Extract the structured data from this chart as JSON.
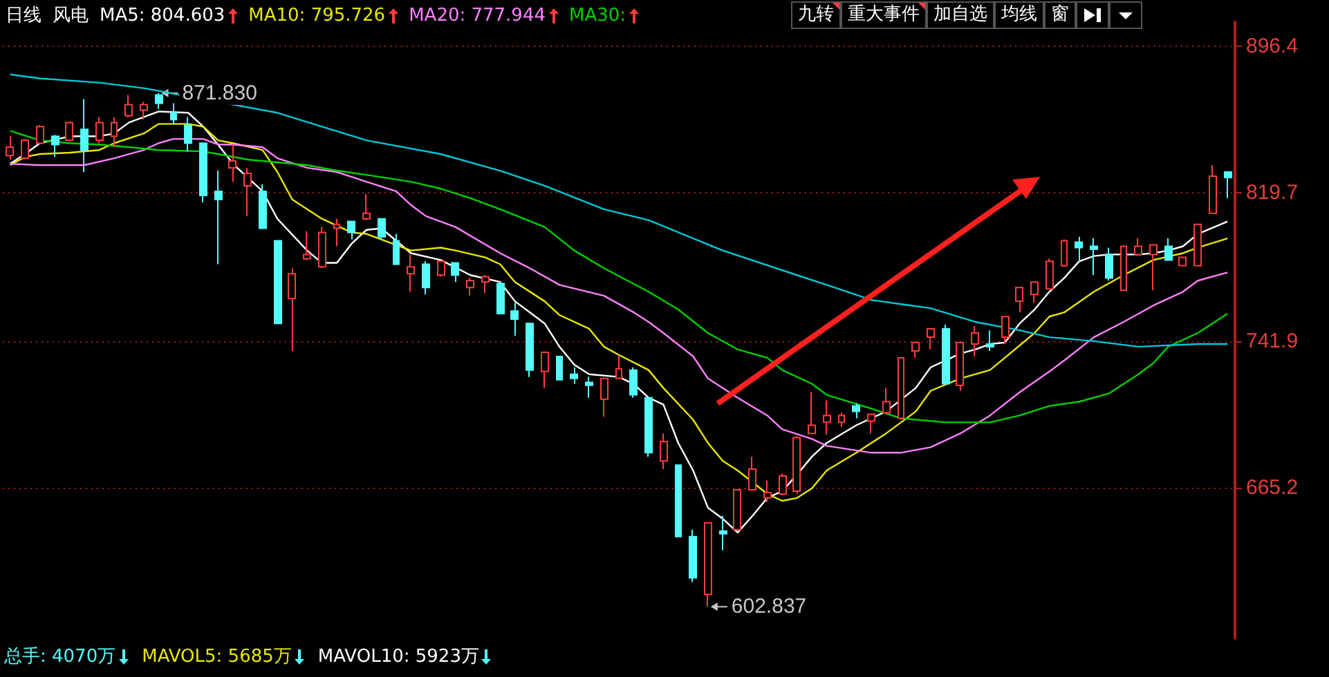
{
  "chart_data": {
    "type": "candlestick",
    "title": "风电",
    "subtitle": "日线",
    "categories": [
      null,
      null,
      null,
      null,
      null,
      null,
      null,
      null,
      null,
      null,
      null,
      null,
      null,
      null,
      null,
      null,
      null,
      null,
      null,
      null,
      null,
      null,
      null,
      null,
      null,
      null,
      null,
      null,
      null,
      null,
      null,
      null,
      null,
      null,
      null,
      null,
      null,
      null,
      null,
      null,
      null,
      null,
      null,
      null,
      null,
      null,
      null,
      null,
      null,
      null,
      null,
      null,
      null,
      null,
      null,
      null,
      null,
      null,
      null,
      null,
      null,
      null,
      null,
      null,
      null,
      null,
      null,
      null,
      null,
      null,
      null,
      null,
      null,
      null,
      null,
      null,
      null,
      null,
      null,
      null,
      null,
      null,
      null
    ],
    "series": [
      {
        "ohlc": [
          [
            839.1,
            849.2,
            837.0,
            843.5
          ],
          [
            837.7,
            847.8,
            837.0,
            847.1
          ],
          [
            845.6,
            855.0,
            844.9,
            854.3
          ],
          [
            849.2,
            849.9,
            838.4,
            844.9
          ],
          [
            847.1,
            857.1,
            846.3,
            856.4
          ],
          [
            852.8,
            868.7,
            830.5,
            842.0
          ],
          [
            847.1,
            859.3,
            845.6,
            856.4
          ],
          [
            849.2,
            859.3,
            843.5,
            856.4
          ],
          [
            860.0,
            870.8,
            859.3,
            865.8
          ],
          [
            862.9,
            867.2,
            857.9,
            865.8
          ],
          [
            870.8,
            871.83,
            863.6,
            866.5
          ],
          [
            861.5,
            866.5,
            855.7,
            857.9
          ],
          [
            855.0,
            859.3,
            841.3,
            845.6
          ],
          [
            845.6,
            845.6,
            814.6,
            818.2
          ],
          [
            820.4,
            831.2,
            782.2,
            816.1
          ],
          [
            832.7,
            844.9,
            825.4,
            836.3
          ],
          [
            823.3,
            832.7,
            807.4,
            829.8
          ],
          [
            820.4,
            824.0,
            801.0,
            801.0
          ],
          [
            794.5,
            794.5,
            751.2,
            751.2
          ],
          [
            764.2,
            780.1,
            736.8,
            777.2
          ],
          [
            785.1,
            799.5,
            784.4,
            787.3
          ],
          [
            780.8,
            801.7,
            780.1,
            798.8
          ],
          [
            801.0,
            806.0,
            791.6,
            803.1
          ],
          [
            804.6,
            804.6,
            795.2,
            798.8
          ],
          [
            806.0,
            819.0,
            805.3,
            808.9
          ],
          [
            806.0,
            806.0,
            795.2,
            796.6
          ],
          [
            794.5,
            798.1,
            782.2,
            782.2
          ],
          [
            777.2,
            787.3,
            767.8,
            780.8
          ],
          [
            782.2,
            783.7,
            766.4,
            770.0
          ],
          [
            776.5,
            783.7,
            775.7,
            783.7
          ],
          [
            782.9,
            782.9,
            772.9,
            776.5
          ],
          [
            770.0,
            775.0,
            765.7,
            773.6
          ],
          [
            772.9,
            776.5,
            767.1,
            775.7
          ],
          [
            772.1,
            772.9,
            756.3,
            756.3
          ],
          [
            757.7,
            762.0,
            744.8,
            753.4
          ],
          [
            751.2,
            751.2,
            723.1,
            726.8
          ],
          [
            726.0,
            736.1,
            717.4,
            736.1
          ],
          [
            733.9,
            733.9,
            721.7,
            721.7
          ],
          [
            724.6,
            728.2,
            719.5,
            722.4
          ],
          [
            720.3,
            723.2,
            712.3,
            718.8
          ],
          [
            711.6,
            722.4,
            702.3,
            722.4
          ],
          [
            722.4,
            734.7,
            722.4,
            727.5
          ],
          [
            726.8,
            728.2,
            712.3,
            713.8
          ],
          [
            712.3,
            712.3,
            681.4,
            683.5
          ],
          [
            679.2,
            693.6,
            674.9,
            689.3
          ],
          [
            677.0,
            677.0,
            639.6,
            639.6
          ],
          [
            639.6,
            643.2,
            615.8,
            618.0
          ],
          [
            609.3,
            646.8,
            602.837,
            646.8
          ],
          [
            642.5,
            650.4,
            632.4,
            641.0
          ],
          [
            643.2,
            664.1,
            643.2,
            664.1
          ],
          [
            664.1,
            681.4,
            664.1,
            674.9
          ],
          [
            659.8,
            669.1,
            657.6,
            662.6
          ],
          [
            661.9,
            672.7,
            661.2,
            671.3
          ],
          [
            663.4,
            692.2,
            661.9,
            691.4
          ],
          [
            693.6,
            715.2,
            693.6,
            697.9
          ],
          [
            699.4,
            710.9,
            692.9,
            703.0
          ],
          [
            699.4,
            704.4,
            697.2,
            703.0
          ],
          [
            708.0,
            709.5,
            701.5,
            705.1
          ],
          [
            700.1,
            703.7,
            693.6,
            703.7
          ],
          [
            704.4,
            717.4,
            703.7,
            710.2
          ],
          [
            701.5,
            733.2,
            700.8,
            733.2
          ],
          [
            736.8,
            741.2,
            733.2,
            741.2
          ],
          [
            744.0,
            748.4,
            737.6,
            748.4
          ],
          [
            748.4,
            750.5,
            719.6,
            719.6
          ],
          [
            718.8,
            741.2,
            715.9,
            741.2
          ],
          [
            740.4,
            749.8,
            733.9,
            746.2
          ],
          [
            740.4,
            747.6,
            736.8,
            739.0
          ],
          [
            744.0,
            754.8,
            740.4,
            754.8
          ],
          [
            762.8,
            770.0,
            757.0,
            770.0
          ],
          [
            766.4,
            772.9,
            762.0,
            772.9
          ],
          [
            769.3,
            785.1,
            769.3,
            783.7
          ],
          [
            781.5,
            795.2,
            780.8,
            794.5
          ],
          [
            793.8,
            796.6,
            783.7,
            790.9
          ],
          [
            791.6,
            795.9,
            776.5,
            790.1
          ],
          [
            787.3,
            790.9,
            773.6,
            775.0
          ],
          [
            768.5,
            791.6,
            768.5,
            791.6
          ],
          [
            787.3,
            795.9,
            787.3,
            791.6
          ],
          [
            787.3,
            792.3,
            768.5,
            792.3
          ],
          [
            791.6,
            795.9,
            784.4,
            784.4
          ],
          [
            781.5,
            785.8,
            781.5,
            785.8
          ],
          [
            781.5,
            803.1,
            781.5,
            803.1
          ],
          [
            808.9,
            834.1,
            808.9,
            828.3
          ],
          [
            830.5,
            830.5,
            816.8,
            827.6
          ]
        ],
        "colors": [
          "#ff3c3c",
          "#ff3c3c",
          "#ff3c3c",
          "#54fcfc",
          "#ff3c3c",
          "#54fcfc",
          "#ff3c3c",
          "#ff3c3c",
          "#ff3c3c",
          "#ff3c3c",
          "#54fcfc",
          "#54fcfc",
          "#54fcfc",
          "#54fcfc",
          "#54fcfc",
          "#ff3c3c",
          "#ff3c3c",
          "#54fcfc",
          "#54fcfc",
          "#ff3c3c",
          "#ff3c3c",
          "#ff3c3c",
          "#ff3c3c",
          "#54fcfc",
          "#ff3c3c",
          "#54fcfc",
          "#54fcfc",
          "#ff3c3c",
          "#54fcfc",
          "#ff3c3c",
          "#54fcfc",
          "#ff3c3c",
          "#ff3c3c",
          "#54fcfc",
          "#54fcfc",
          "#54fcfc",
          "#ff3c3c",
          "#54fcfc",
          "#54fcfc",
          "#54fcfc",
          "#ff3c3c",
          "#ff3c3c",
          "#54fcfc",
          "#54fcfc",
          "#ff3c3c",
          "#54fcfc",
          "#54fcfc",
          "#ff3c3c",
          "#54fcfc",
          "#ff3c3c",
          "#ff3c3c",
          "#ff3c3c",
          "#ff3c3c",
          "#ff3c3c",
          "#ff3c3c",
          "#ff3c3c",
          "#ff3c3c",
          "#54fcfc",
          "#ff3c3c",
          "#ff3c3c",
          "#ff3c3c",
          "#ff3c3c",
          "#ff3c3c",
          "#54fcfc",
          "#ff3c3c",
          "#ff3c3c",
          "#54fcfc",
          "#ff3c3c",
          "#ff3c3c",
          "#ff3c3c",
          "#ff3c3c",
          "#ff3c3c",
          "#54fcfc",
          "#54fcfc",
          "#54fcfc",
          "#ff3c3c",
          "#ff3c3c",
          "#ff3c3c",
          "#54fcfc",
          "#ff3c3c",
          "#ff3c3c",
          "#ff3c3c",
          "#54fcfc"
        ]
      },
      {
        "type": "line",
        "name": "MA5: 804.603",
        "color": "#ffffff",
        "values": [
          834.8,
          839.9,
          845.6,
          null,
          849.2,
          null,
          849.2,
          850.7,
          856.4,
          null,
          862.2,
          null,
          861.5,
          854.3,
          844.9,
          834.8,
          null,
          820.4,
          806.0,
          null,
          789.4,
          782.9,
          782.9,
          793.0,
          800.2,
          801.0,
          794.5,
          788.0,
          null,
          784.4,
          null,
          776.5,
          null,
          772.9,
          762.8,
          null,
          751.2,
          739.0,
          729.6,
          724.6,
          null,
          723.2,
          719.5,
          712.3,
          708.7,
          688.6,
          674.2,
          654.7,
          648.9,
          641.7,
          650.4,
          659.8,
          663.4,
          672.0,
          681.4,
          688.6,
          null,
          697.9,
          null,
          705.1,
          null,
          717.4,
          728.2,
          null,
          735.4,
          737.6,
          740.4,
          741.2,
          751.2,
          758.5,
          767.8,
          775.0,
          783.7,
          786.5,
          787.3,
          null,
          787.3,
          788.0,
          789.4,
          791.6,
          798.1,
          null,
          804.6
        ]
      },
      {
        "type": "line",
        "name": "MA10: 795.726",
        "color": "#e8e800",
        "values": [
          834.1,
          838.4,
          839.9,
          null,
          840.6,
          null,
          842.0,
          845.6,
          null,
          850.7,
          855.7,
          null,
          855.7,
          854.3,
          847.1,
          845.6,
          null,
          842.0,
          830.5,
          816.1,
          null,
          806.0,
          802.4,
          798.8,
          798.1,
          795.2,
          null,
          789.4,
          null,
          790.9,
          789.4,
          null,
          785.8,
          782.2,
          772.9,
          null,
          762.8,
          755.6,
          null,
          748.4,
          739.0,
          734.7,
          null,
          726.8,
          717.4,
          null,
          700.8,
          688.6,
          679.2,
          674.2,
          null,
          661.9,
          658.3,
          659.8,
          664.8,
          674.2,
          null,
          683.5,
          null,
          693.6,
          null,
          705.1,
          715.9,
          null,
          722.4,
          null,
          726.8,
          733.2,
          null,
          746.2,
          754.8,
          757.0,
          null,
          767.8,
          null,
          776.5,
          null,
          784.4,
          null,
          788.0,
          790.9,
          null,
          795.7
        ]
      },
      {
        "type": "line",
        "name": "MA20: 777.944",
        "color": "#ff80ff",
        "values": [
          834.8,
          null,
          834.1,
          null,
          null,
          834.1,
          null,
          837.7,
          null,
          842.0,
          845.6,
          847.8,
          null,
          847.8,
          844.9,
          844.9,
          null,
          843.5,
          837.7,
          null,
          832.7,
          null,
          830.5,
          null,
          825.4,
          null,
          820.4,
          813.2,
          807.4,
          null,
          801.7,
          null,
          null,
          788.0,
          null,
          780.1,
          null,
          771.4,
          null,
          null,
          765.7,
          null,
          757.0,
          752.0,
          746.2,
          null,
          734.0,
          722.4,
          null,
          712.3,
          null,
          703.0,
          695.8,
          null,
          690.7,
          687.1,
          null,
          null,
          683.5,
          null,
          683.5,
          null,
          686.4,
          null,
          693.6,
          null,
          703.0,
          null,
          715.2,
          null,
          726.0,
          731.8,
          null,
          744.0,
          null,
          752.0,
          null,
          760.6,
          null,
          767.8,
          773.6,
          null,
          777.9
        ]
      },
      {
        "type": "line",
        "name": "MA30:",
        "color": "#00d000",
        "values": [
          852.1,
          null,
          847.1,
          null,
          845.6,
          null,
          844.9,
          null,
          843.5,
          null,
          842.0,
          null,
          null,
          841.3,
          839.9,
          null,
          837.0,
          null,
          null,
          null,
          834.1,
          null,
          831.2,
          null,
          829.0,
          null,
          null,
          825.4,
          null,
          821.8,
          null,
          816.8,
          null,
          811.0,
          null,
          null,
          801.7,
          null,
          789.4,
          null,
          780.1,
          null,
          null,
          767.8,
          null,
          758.5,
          null,
          746.2,
          null,
          737.6,
          null,
          733.2,
          726.8,
          null,
          719.6,
          713.8,
          null,
          null,
          706.6,
          null,
          701.5,
          null,
          null,
          699.4,
          null,
          null,
          699.4,
          null,
          703.0,
          null,
          708.0,
          null,
          710.2,
          null,
          714.5,
          null,
          724.6,
          730.4,
          739.0,
          null,
          746.2,
          null,
          756.3
        ]
      },
      {
        "type": "line",
        "color": "#00c8d8",
        "values": [
          881.6,
          null,
          879.5,
          null,
          null,
          null,
          877.3,
          null,
          null,
          874.4,
          null,
          null,
          null,
          null,
          null,
          null,
          null,
          null,
          861.5,
          null,
          null,
          null,
          null,
          null,
          847.1,
          null,
          null,
          null,
          null,
          839.9,
          null,
          null,
          null,
          831.2,
          null,
          null,
          823.3,
          null,
          null,
          null,
          811.0,
          null,
          null,
          805.3,
          null,
          null,
          null,
          null,
          789.4,
          null,
          null,
          null,
          null,
          776.5,
          null,
          771.4,
          null,
          null,
          763.5,
          null,
          761.3,
          null,
          759.2,
          null,
          null,
          752.0,
          null,
          null,
          747.6,
          null,
          744.0,
          null,
          null,
          741.9,
          null,
          null,
          739.0,
          null,
          null,
          null,
          740.4,
          null,
          740.4
        ]
      }
    ],
    "ylim": [
      586.3,
      909.0
    ],
    "yticks": [
      665.2,
      741.9,
      819.7,
      896.4
    ],
    "grid": "y",
    "tick_labels": "y",
    "legend": "top left",
    "annotations": [
      "九转",
      "重大事件",
      "加自选",
      "均线",
      "窗",
      "总手: 4070万",
      "MAVOL5: 5685万",
      "MAVOL10: 5923万",
      "871.830",
      "602.837"
    ]
  }
}
